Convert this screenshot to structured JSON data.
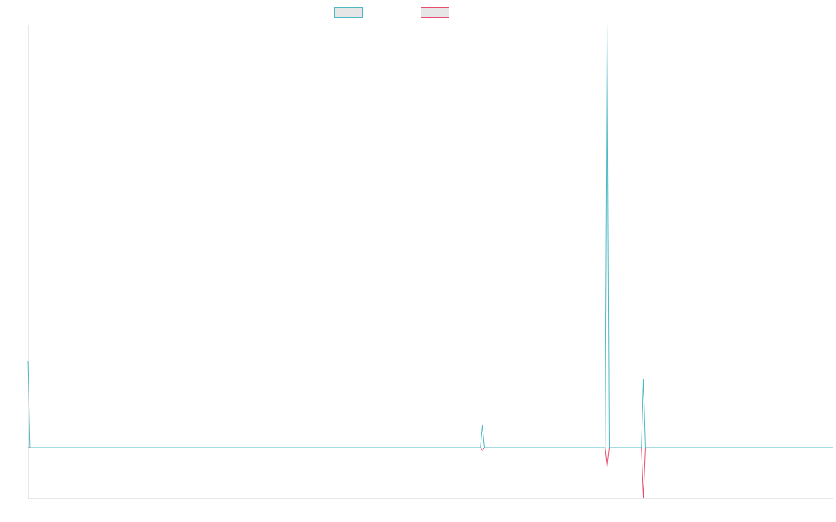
{
  "chart_data": {
    "type": "line",
    "title": "",
    "xlabel": "",
    "ylabel": "",
    "grid": false,
    "legend": {
      "placement": "top-center",
      "entries": [
        {
          "label": "",
          "stroke": "#4bb8c4",
          "fill": "#e6e6e6"
        },
        {
          "label": "",
          "stroke": "#e94b6f",
          "fill": "#e6e6e6"
        }
      ]
    },
    "x": [
      0,
      1,
      2,
      3,
      4,
      5,
      6,
      7,
      8,
      9,
      10,
      11,
      12,
      13,
      14,
      15,
      16,
      17,
      18,
      19,
      20,
      21,
      22,
      23,
      24,
      25,
      26,
      27,
      28,
      29,
      30,
      31,
      32,
      33,
      34,
      35,
      36,
      37,
      38,
      39,
      40,
      41,
      42,
      43,
      44,
      45,
      46,
      47,
      48,
      49,
      50,
      51,
      52,
      53,
      54,
      55,
      56,
      57,
      58,
      59,
      60,
      61,
      62,
      63,
      64,
      65,
      66,
      67,
      68,
      69,
      70,
      71,
      72,
      73,
      74,
      75,
      76,
      77,
      78,
      79,
      80,
      81,
      82,
      83,
      84,
      85,
      86,
      87,
      88,
      89,
      90,
      91,
      92,
      93,
      94,
      95,
      96,
      97,
      98,
      99,
      100,
      101,
      102,
      103,
      104,
      105,
      106,
      107,
      108,
      109,
      110,
      111,
      112,
      113,
      114,
      115,
      116,
      117,
      118,
      119,
      120,
      121,
      122,
      123,
      124,
      125,
      126,
      127,
      128,
      129,
      130,
      131,
      132,
      133,
      134,
      135,
      136,
      137,
      138,
      139,
      140,
      141,
      142,
      143,
      144,
      145,
      146,
      147,
      148,
      149,
      150,
      151,
      152,
      153,
      154,
      155,
      156,
      157,
      158,
      159,
      160,
      161,
      162,
      163,
      164,
      165,
      166,
      167,
      168,
      169,
      170,
      171,
      172,
      173,
      174,
      175,
      176,
      177,
      178,
      179,
      180,
      181,
      182,
      183,
      184,
      185,
      186,
      187,
      188,
      189,
      190,
      191,
      192,
      193,
      194,
      195,
      196,
      197,
      198,
      199,
      200,
      201,
      202,
      203,
      204,
      205,
      206,
      207,
      208,
      209,
      210,
      211,
      212,
      213,
      214,
      215,
      216,
      217,
      218,
      219,
      220,
      221,
      222,
      223,
      224,
      225,
      226,
      227,
      228,
      229,
      230,
      231,
      232,
      233,
      234,
      235,
      236,
      237,
      238,
      239,
      240,
      241,
      242,
      243,
      244,
      245,
      246,
      247,
      248,
      249,
      250,
      251,
      252,
      253,
      254,
      255,
      256,
      257,
      258,
      259,
      260,
      261,
      262,
      263,
      264,
      265,
      266,
      267,
      268,
      269,
      270,
      271,
      272,
      273,
      274,
      275,
      276,
      277,
      278,
      279,
      280,
      281,
      282,
      283,
      284,
      285,
      286,
      287,
      288,
      289,
      290,
      291,
      292,
      293,
      294,
      295,
      296,
      297,
      298,
      299,
      300,
      301,
      302,
      303,
      304,
      305,
      306,
      307,
      308,
      309,
      310,
      311,
      312,
      313,
      314,
      315,
      316,
      317,
      318,
      319,
      320,
      321,
      322,
      323,
      324,
      325,
      326,
      327,
      328,
      329,
      330,
      331,
      332,
      333,
      334,
      335,
      336,
      337,
      338,
      339,
      340,
      341,
      342,
      343,
      344,
      345,
      346,
      347,
      348,
      349,
      350,
      351,
      352,
      353,
      354,
      355,
      356,
      357,
      358,
      359,
      360,
      361,
      362,
      363,
      364,
      365,
      366,
      367,
      368,
      369,
      370,
      371,
      372,
      373,
      374,
      375,
      376,
      377,
      378,
      379,
      380,
      381,
      382,
      383,
      384,
      385,
      386,
      387,
      388,
      389,
      390,
      391,
      392,
      393,
      394,
      395,
      396,
      397,
      398,
      399,
      400
    ],
    "ylim": [
      -7.3,
      60.7
    ],
    "series": [
      {
        "name": "",
        "stroke": "#4bb8c4",
        "values": [
          12.5,
          0,
          0,
          0,
          0,
          0,
          0,
          0,
          0,
          0,
          0,
          0,
          0,
          0,
          0,
          0,
          0,
          0,
          0,
          0,
          0,
          0,
          0,
          0,
          0,
          0,
          0,
          0,
          0,
          0,
          0,
          0,
          0,
          0,
          0,
          0,
          0,
          0,
          0,
          0,
          0,
          0,
          0,
          0,
          0,
          0,
          0,
          0,
          0,
          0,
          0,
          0,
          0,
          0,
          0,
          0,
          0,
          0,
          0,
          0,
          0,
          0,
          0,
          0,
          0,
          0,
          0,
          0,
          0,
          0,
          0,
          0,
          0,
          0,
          0,
          0,
          0,
          0,
          0,
          0,
          0,
          0,
          0,
          0,
          0,
          0,
          0,
          0,
          0,
          0,
          0,
          0,
          0,
          0,
          0,
          0,
          0,
          0,
          0,
          0,
          0,
          0,
          0,
          0,
          0,
          0,
          0,
          0,
          0,
          0,
          0,
          0,
          0,
          0,
          0,
          0,
          0,
          0,
          0,
          0,
          0,
          0,
          0,
          0,
          0,
          0,
          0,
          0,
          0,
          0,
          0,
          0,
          0,
          0,
          0,
          0,
          0,
          0,
          0,
          0,
          0,
          0,
          0,
          0,
          0,
          0,
          0,
          0,
          0,
          0,
          0,
          0,
          0,
          0,
          0,
          0,
          0,
          0,
          0,
          0,
          0,
          0,
          0,
          0,
          0,
          0,
          0,
          0,
          0,
          0,
          0,
          0,
          0,
          0,
          0,
          0,
          0,
          0,
          0,
          0,
          0,
          0,
          0,
          0,
          0,
          0,
          0,
          0,
          0,
          0,
          0,
          0,
          0,
          0,
          0,
          0,
          0,
          0,
          0,
          0,
          0,
          0,
          0,
          0,
          0,
          0,
          0,
          0,
          0,
          0,
          0,
          0,
          0,
          0,
          0,
          0,
          0,
          0,
          0,
          0,
          0,
          0,
          0,
          0,
          0,
          0,
          3.2,
          0,
          0,
          0,
          0,
          0,
          0,
          0,
          0,
          0,
          0,
          0,
          0,
          0,
          0,
          0,
          0,
          0,
          0,
          0,
          0,
          0,
          0,
          0,
          0,
          0,
          0,
          0,
          0,
          0,
          0,
          0,
          0,
          0,
          0,
          0,
          0,
          0,
          0,
          0,
          0,
          0,
          0,
          0,
          0,
          0,
          0,
          0,
          0,
          0,
          0,
          0,
          0,
          0,
          0,
          0,
          0,
          0,
          0,
          0,
          0,
          0,
          60.7,
          0,
          0,
          0,
          0,
          0,
          0,
          0,
          0,
          0,
          0,
          0,
          0,
          0,
          0,
          0,
          0,
          0,
          9.9,
          0,
          0,
          0,
          0,
          0,
          0,
          0,
          0,
          0,
          0,
          0,
          0,
          0,
          0,
          0,
          0,
          0,
          0,
          0,
          0,
          0,
          0,
          0,
          0,
          0,
          0,
          0,
          0,
          0,
          0,
          0,
          0,
          0,
          0,
          0,
          0,
          0,
          0,
          0,
          0,
          0,
          0,
          0,
          0,
          0,
          0,
          0,
          0,
          0,
          0,
          0,
          0,
          0,
          0,
          0,
          0,
          0,
          0,
          0,
          0,
          0,
          0,
          0,
          0,
          0,
          0,
          0,
          0,
          0,
          0,
          0,
          0,
          0,
          0,
          0,
          0,
          0,
          0,
          0,
          0,
          0,
          0,
          0,
          0,
          0,
          0,
          0,
          0,
          0,
          0,
          0,
          0,
          0,
          0
        ]
      },
      {
        "name": "",
        "stroke": "#e94b6f",
        "values": [
          0,
          0,
          0,
          0,
          0,
          0,
          0,
          0,
          0,
          0,
          0,
          0,
          0,
          0,
          0,
          0,
          0,
          0,
          0,
          0,
          0,
          0,
          0,
          0,
          0,
          0,
          0,
          0,
          0,
          0,
          0,
          0,
          0,
          0,
          0,
          0,
          0,
          0,
          0,
          0,
          0,
          0,
          0,
          0,
          0,
          0,
          0,
          0,
          0,
          0,
          0,
          0,
          0,
          0,
          0,
          0,
          0,
          0,
          0,
          0,
          0,
          0,
          0,
          0,
          0,
          0,
          0,
          0,
          0,
          0,
          0,
          0,
          0,
          0,
          0,
          0,
          0,
          0,
          0,
          0,
          0,
          0,
          0,
          0,
          0,
          0,
          0,
          0,
          0,
          0,
          0,
          0,
          0,
          0,
          0,
          0,
          0,
          0,
          0,
          0,
          0,
          0,
          0,
          0,
          0,
          0,
          0,
          0,
          0,
          0,
          0,
          0,
          0,
          0,
          0,
          0,
          0,
          0,
          0,
          0,
          0,
          0,
          0,
          0,
          0,
          0,
          0,
          0,
          0,
          0,
          0,
          0,
          0,
          0,
          0,
          0,
          0,
          0,
          0,
          0,
          0,
          0,
          0,
          0,
          0,
          0,
          0,
          0,
          0,
          0,
          0,
          0,
          0,
          0,
          0,
          0,
          0,
          0,
          0,
          0,
          0,
          0,
          0,
          0,
          0,
          0,
          0,
          0,
          0,
          0,
          0,
          0,
          0,
          0,
          0,
          0,
          0,
          0,
          0,
          0,
          0,
          0,
          0,
          0,
          0,
          0,
          0,
          0,
          0,
          0,
          0,
          0,
          0,
          0,
          0,
          0,
          0,
          0,
          0,
          0,
          0,
          0,
          0,
          0,
          0,
          0,
          0,
          0,
          0,
          0,
          0,
          0,
          0,
          0,
          0,
          0,
          0,
          0,
          0,
          0,
          0,
          0,
          0,
          0,
          0,
          0,
          -0.4,
          0,
          0,
          0,
          0,
          0,
          0,
          0,
          0,
          0,
          0,
          0,
          0,
          0,
          0,
          0,
          0,
          0,
          0,
          0,
          0,
          0,
          0,
          0,
          0,
          0,
          0,
          0,
          0,
          0,
          0,
          0,
          0,
          0,
          0,
          0,
          0,
          0,
          0,
          0,
          0,
          0,
          0,
          0,
          0,
          0,
          0,
          0,
          0,
          0,
          0,
          0,
          0,
          0,
          0,
          0,
          0,
          0,
          0,
          0,
          0,
          0,
          -2.8,
          0,
          0,
          0,
          0,
          0,
          0,
          0,
          0,
          0,
          0,
          0,
          0,
          0,
          0,
          0,
          0,
          0,
          -7.3,
          0,
          0,
          0,
          0,
          0,
          0,
          0,
          0,
          0,
          0,
          0,
          0,
          0,
          0,
          0,
          0,
          0,
          0,
          0,
          0,
          0,
          0,
          0,
          0,
          0,
          0,
          0,
          0,
          0,
          0,
          0,
          0,
          0,
          0,
          0,
          0,
          0,
          0,
          0,
          0,
          0,
          0,
          0,
          0,
          0,
          0,
          0,
          0,
          0,
          0,
          0,
          0,
          0,
          0,
          0,
          0,
          0,
          0,
          0,
          0,
          0,
          0,
          0,
          0,
          0,
          0,
          0,
          0,
          0,
          0,
          0,
          0,
          0,
          0,
          0,
          0,
          0,
          0,
          0,
          0,
          0,
          0,
          0,
          0,
          0,
          0,
          0,
          0,
          0,
          0,
          0,
          0,
          0,
          0
        ]
      }
    ]
  }
}
